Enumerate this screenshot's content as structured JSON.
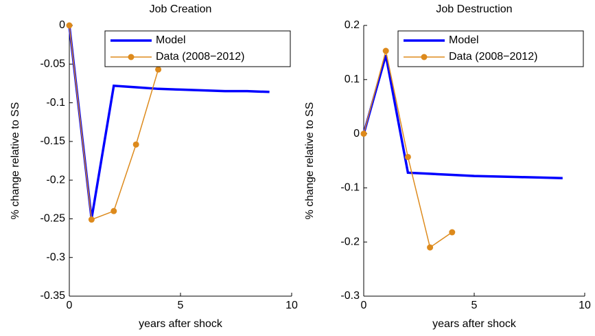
{
  "chart_data": [
    {
      "type": "line",
      "title": "Job Creation",
      "xlabel": "years after shock",
      "ylabel": "% change relative to SS",
      "xlim": [
        0,
        10
      ],
      "xticks": [
        0,
        5,
        10
      ],
      "ylim": [
        -0.35,
        0
      ],
      "yticks": [
        -0.35,
        -0.3,
        -0.25,
        -0.2,
        -0.15,
        -0.1,
        -0.05,
        0
      ],
      "legend": "northeast",
      "series": [
        {
          "name": "Model",
          "color": "#0000ff",
          "marker": false,
          "x": [
            0,
            1,
            2,
            3,
            4,
            5,
            6,
            7,
            8,
            9
          ],
          "values": [
            0,
            -0.25,
            -0.078,
            -0.08,
            -0.082,
            -0.083,
            -0.084,
            -0.085,
            -0.085,
            -0.086
          ]
        },
        {
          "name": "Data (2008−2012)",
          "color": "#dd8a1c",
          "marker": true,
          "x": [
            0,
            1,
            2,
            3,
            4
          ],
          "values": [
            0,
            -0.251,
            -0.24,
            -0.154,
            -0.057
          ]
        }
      ]
    },
    {
      "type": "line",
      "title": "Job Destruction",
      "xlabel": "years after shock",
      "ylabel": "% change relative to SS",
      "xlim": [
        0,
        10
      ],
      "xticks": [
        0,
        5,
        10
      ],
      "ylim": [
        -0.3,
        0.2
      ],
      "yticks": [
        -0.3,
        -0.2,
        -0.1,
        0,
        0.1,
        0.2
      ],
      "legend": "northeast",
      "series": [
        {
          "name": "Model",
          "color": "#0000ff",
          "marker": false,
          "x": [
            0,
            1,
            2,
            3,
            4,
            5,
            6,
            7,
            8,
            9
          ],
          "values": [
            0,
            0.145,
            -0.072,
            -0.074,
            -0.076,
            -0.078,
            -0.079,
            -0.08,
            -0.081,
            -0.082
          ]
        },
        {
          "name": "Data (2008−2012)",
          "color": "#dd8a1c",
          "marker": true,
          "x": [
            0,
            1,
            2,
            3,
            4
          ],
          "values": [
            0,
            0.153,
            -0.043,
            -0.21,
            -0.182
          ]
        }
      ]
    }
  ]
}
